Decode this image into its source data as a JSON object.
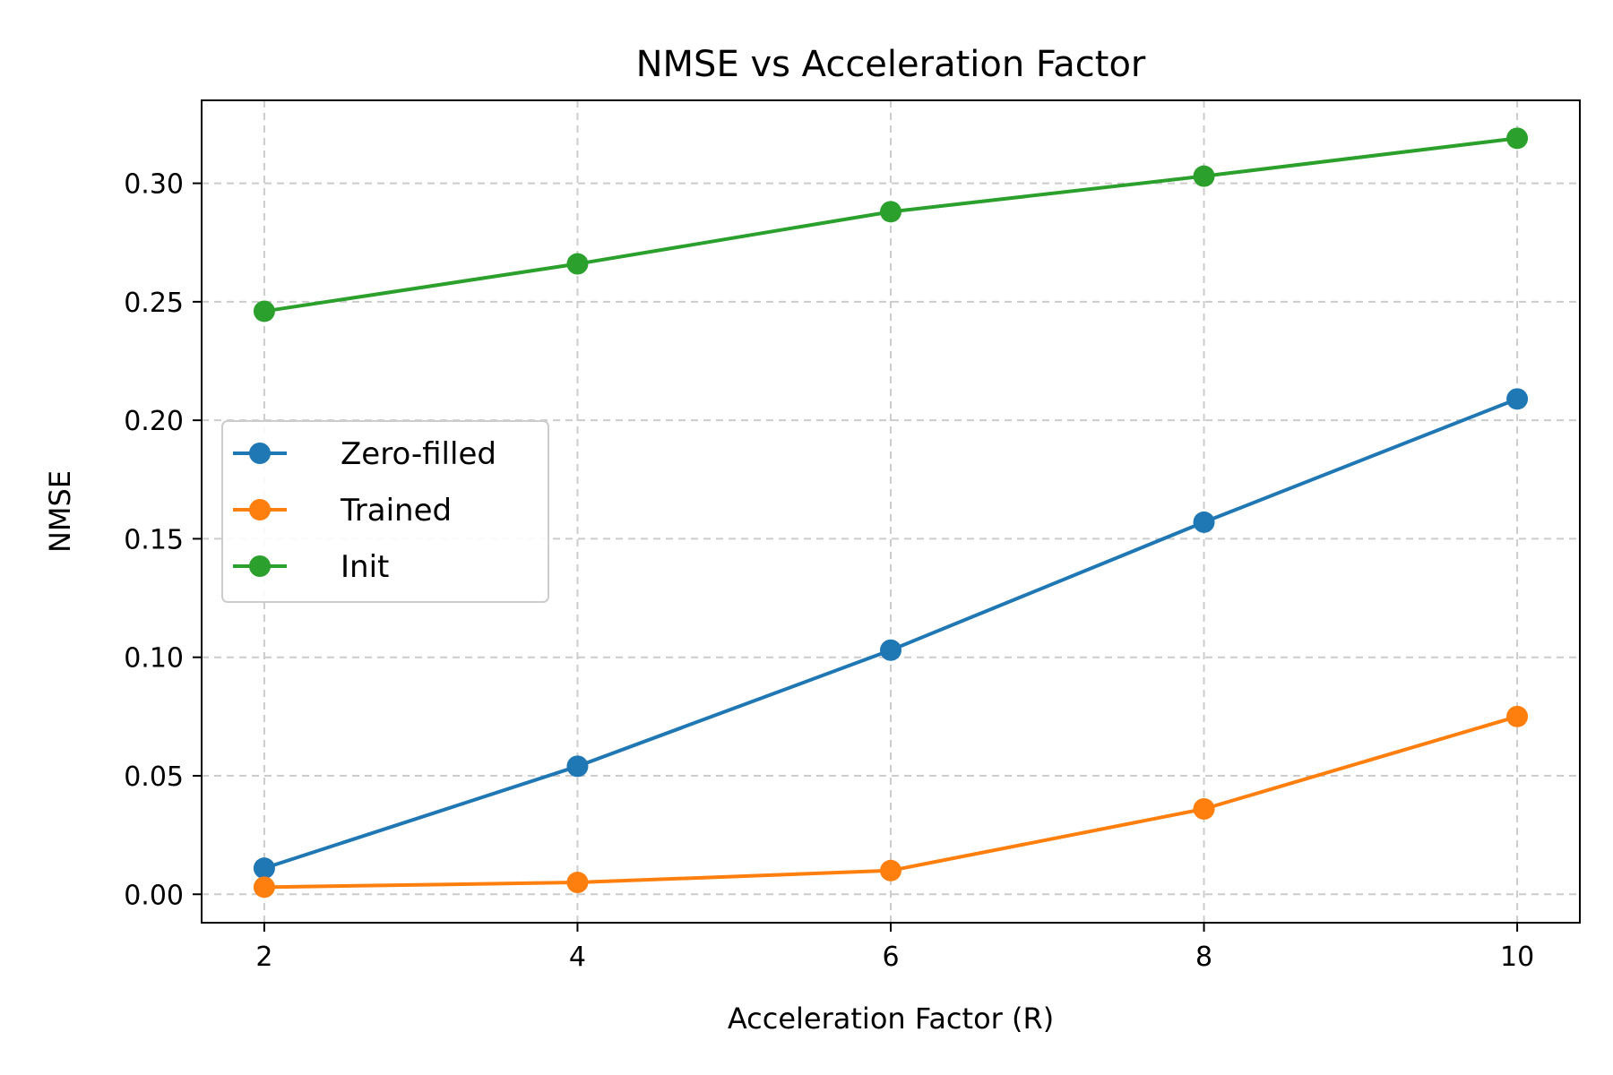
{
  "chart_data": {
    "type": "line",
    "title": "NMSE vs Acceleration Factor",
    "xlabel": "Acceleration Factor (R)",
    "ylabel": "NMSE",
    "x": [
      2,
      4,
      6,
      8,
      10
    ],
    "xticks": [
      2,
      4,
      6,
      8,
      10
    ],
    "yticks": [
      0.0,
      0.05,
      0.1,
      0.15,
      0.2,
      0.25,
      0.3
    ],
    "ytick_labels": [
      "0.00",
      "0.05",
      "0.10",
      "0.15",
      "0.20",
      "0.25",
      "0.30"
    ],
    "xlim": [
      1.6,
      10.4
    ],
    "ylim": [
      -0.012,
      0.335
    ],
    "grid": true,
    "legend_position": "center-left",
    "series": [
      {
        "name": "Zero-filled",
        "color": "#1f77b4",
        "values": [
          0.011,
          0.054,
          0.103,
          0.157,
          0.209
        ]
      },
      {
        "name": "Trained",
        "color": "#ff7f0e",
        "values": [
          0.003,
          0.005,
          0.01,
          0.036,
          0.075
        ]
      },
      {
        "name": "Init",
        "color": "#2ca02c",
        "values": [
          0.246,
          0.266,
          0.288,
          0.303,
          0.319
        ]
      }
    ]
  }
}
